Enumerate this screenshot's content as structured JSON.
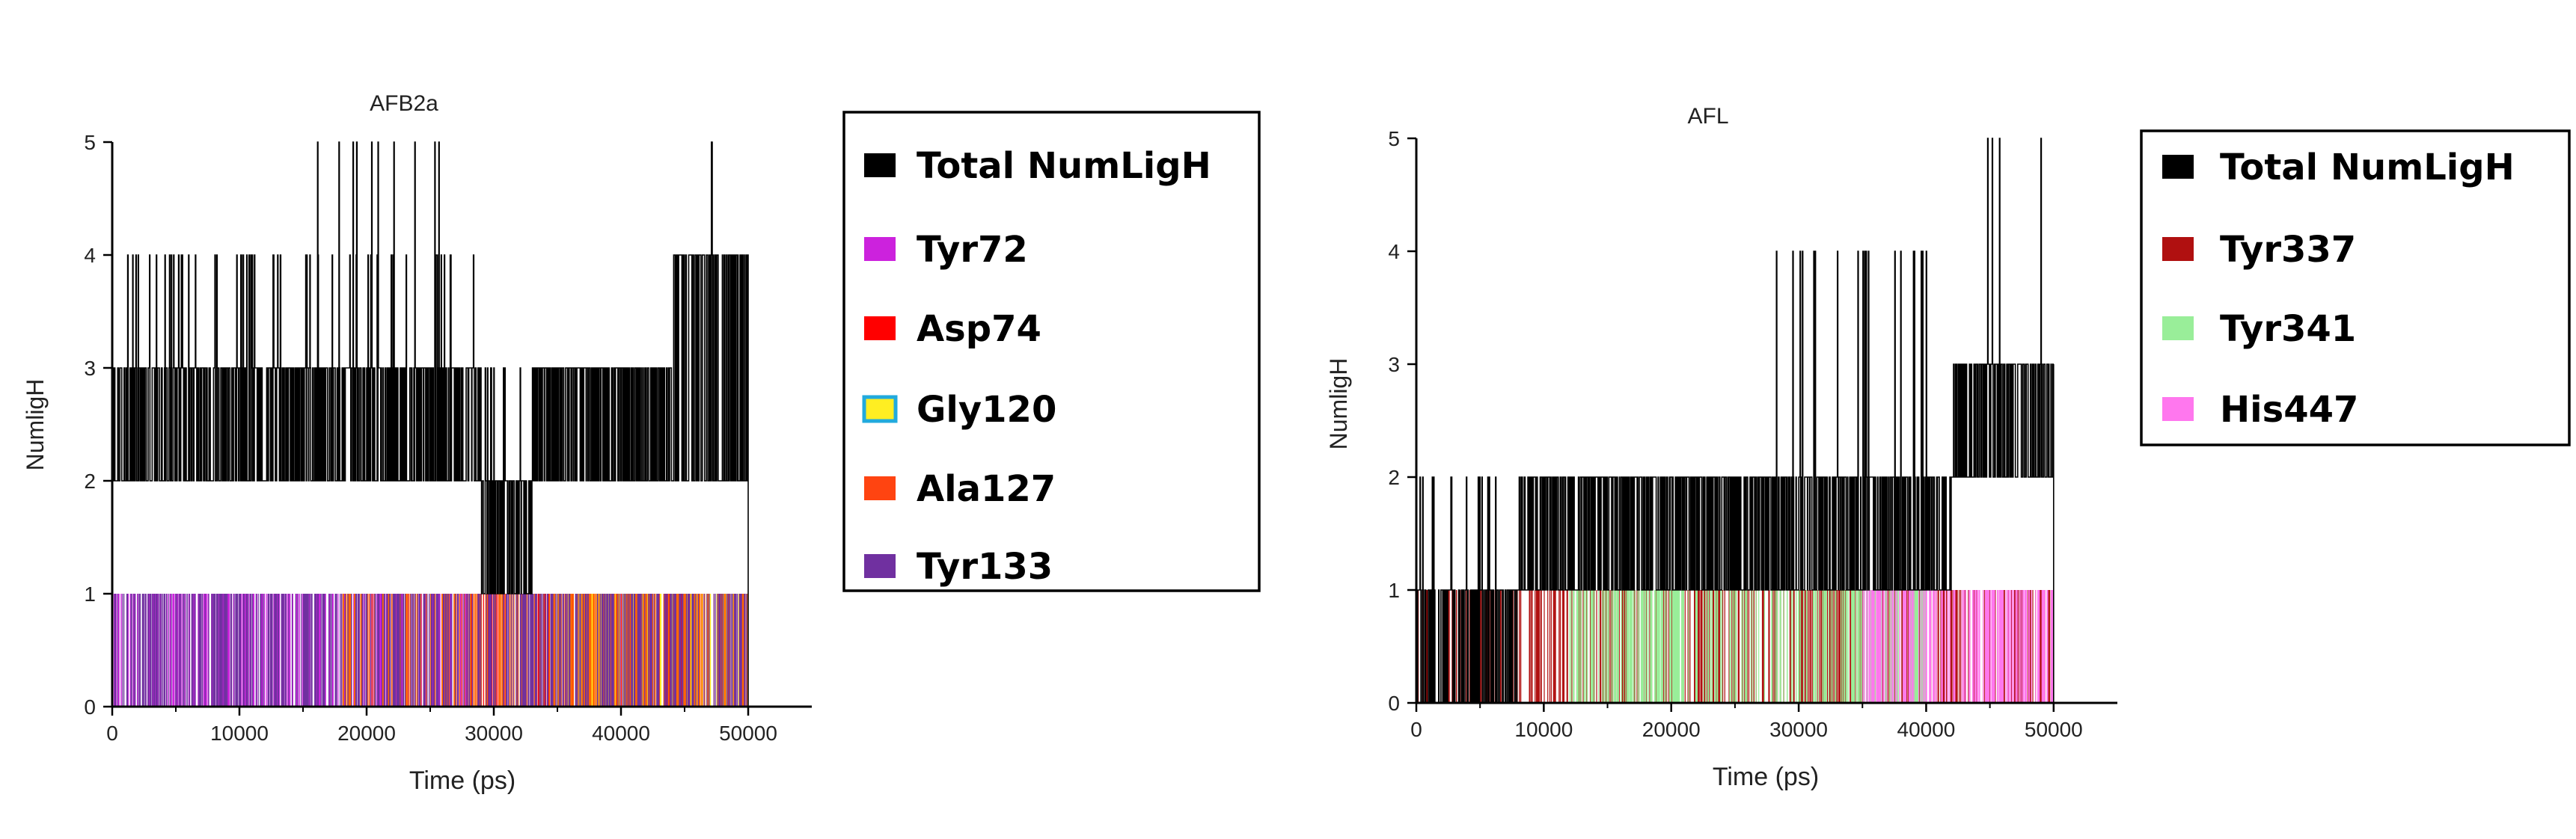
{
  "chart_data": [
    {
      "type": "bar",
      "title": "AFB2a",
      "xlabel": "Time (ps)",
      "ylabel": "NumligH",
      "xlim": [
        0,
        55000
      ],
      "ylim": [
        0,
        5
      ],
      "x_ticks": [
        "0",
        "10000",
        "20000",
        "30000",
        "40000",
        "50000"
      ],
      "y_ticks": [
        "0",
        "1",
        "2",
        "3",
        "4",
        "5"
      ],
      "grid": false,
      "legend_position": "right",
      "series": [
        {
          "name": "Total NumLigH",
          "color": "#000000",
          "levels": [
            0,
            1,
            2,
            3,
            4,
            5
          ],
          "segments": [
            {
              "from": 0,
              "to": 14000,
              "base": 2,
              "high": 3,
              "spike": 4
            },
            {
              "from": 14000,
              "to": 29000,
              "base": 2,
              "high": 3,
              "spike": 4,
              "max": 5
            },
            {
              "from": 29000,
              "to": 33000,
              "base": 1,
              "high": 2,
              "spike": 3
            },
            {
              "from": 33000,
              "to": 44000,
              "base": 2,
              "high": 3,
              "spike": 3
            },
            {
              "from": 44000,
              "to": 50000,
              "base": 2,
              "high": 4,
              "max": 5
            }
          ]
        },
        {
          "name": "Tyr72",
          "color": "#cc22dd",
          "value": 1,
          "x_range": [
            0,
            29000
          ]
        },
        {
          "name": "Asp74",
          "color": "#ff0000",
          "value": 1,
          "x_range": [
            28000,
            46000
          ]
        },
        {
          "name": "Gly120",
          "color": "#ffee22",
          "edge_color": "#22aadd",
          "value": 1,
          "x_range": [
            35000,
            50000
          ]
        },
        {
          "name": "Ala127",
          "color": "#ff6600",
          "value": 1,
          "x_range": [
            18000,
            50000
          ]
        },
        {
          "name": "Tyr133",
          "color": "#7030a0",
          "value": 1,
          "x_range": [
            0,
            50000
          ]
        }
      ]
    },
    {
      "type": "bar",
      "title": "AFL",
      "xlabel": "Time (ps)",
      "ylabel": "NumligH",
      "xlim": [
        0,
        55000
      ],
      "ylim": [
        0,
        5
      ],
      "x_ticks": [
        "0",
        "10000",
        "20000",
        "30000",
        "40000",
        "50000"
      ],
      "y_ticks": [
        "0",
        "1",
        "2",
        "3",
        "4",
        "5"
      ],
      "grid": false,
      "legend_position": "right",
      "series": [
        {
          "name": "Total NumLigH",
          "color": "#000000",
          "levels": [
            0,
            1,
            2,
            3,
            4,
            5
          ],
          "segments": [
            {
              "from": 0,
              "to": 8000,
              "base": 0,
              "high": 1,
              "spike": 2
            },
            {
              "from": 8000,
              "to": 28000,
              "base": 1,
              "high": 2,
              "spike": 2
            },
            {
              "from": 28000,
              "to": 42000,
              "base": 1,
              "high": 2,
              "spike": 4
            },
            {
              "from": 42000,
              "to": 50000,
              "base": 2,
              "high": 3,
              "max": 5
            }
          ]
        },
        {
          "name": "Tyr337",
          "color": "#b01010",
          "value": 1,
          "x_range": [
            0,
            50000
          ]
        },
        {
          "name": "Tyr341",
          "color": "#99ee99",
          "value": 1,
          "x_range": [
            12000,
            40000
          ]
        },
        {
          "name": "His447",
          "color": "#ff77ee",
          "value": 1,
          "x_range": [
            35000,
            50000
          ]
        }
      ]
    }
  ]
}
